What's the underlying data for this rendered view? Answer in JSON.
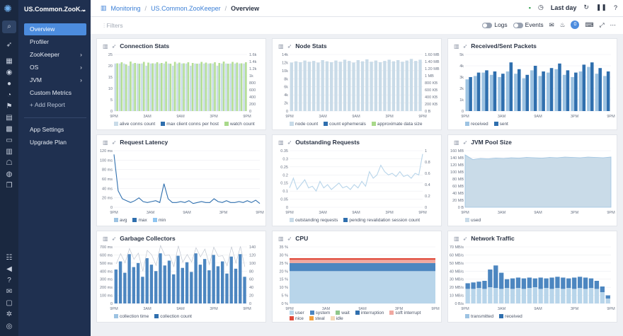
{
  "app": {
    "name": "US.Common.ZooK..."
  },
  "nav": {
    "items": [
      {
        "label": "Overview"
      },
      {
        "label": "Profiler"
      },
      {
        "label": "ZooKeeper"
      },
      {
        "label": "OS"
      },
      {
        "label": "JVM"
      },
      {
        "label": "Custom Metrics"
      },
      {
        "label": "Add Report"
      },
      {
        "label": "App Settings"
      },
      {
        "label": "Upgrade Plan"
      }
    ]
  },
  "breadcrumb": {
    "root": "Monitoring",
    "app": "US.Common.ZooKeeper",
    "page": "Overview"
  },
  "header": {
    "time_range": "Last day"
  },
  "toolbar": {
    "filters": "Filters",
    "logs": "Logs",
    "events": "Events",
    "notif_count": "0"
  },
  "xticks": [
    "9PM",
    "3AM",
    "9AM",
    "3PM",
    "9PM"
  ],
  "panels": [
    {
      "title": "Connection Stats",
      "y_left": [
        "25",
        "20",
        "15",
        "10",
        "5",
        "0"
      ],
      "y_right": [
        "1.6k",
        "1.4k",
        "1.2k",
        "1k",
        "800",
        "600",
        "400",
        "200",
        "0"
      ],
      "legend": [
        {
          "name": "alive conns count",
          "color": "#c9dbe8"
        },
        {
          "name": "max client conns per host",
          "color": "#2f6fae"
        },
        {
          "name": "watch count",
          "color": "#a8d98a"
        }
      ],
      "chart_data": {
        "type": "bar",
        "series": [
          {
            "name": "alive conns count",
            "values": [
              21,
              21,
              21,
              20,
              21,
              21,
              21,
              20,
              21,
              21,
              21,
              21,
              21,
              20,
              21,
              21,
              21,
              20,
              21,
              21,
              21,
              21,
              21,
              20,
              21,
              21,
              21,
              21,
              21,
              21
            ]
          },
          {
            "name": "watch count",
            "values": [
              1350,
              1380,
              1320,
              1400,
              1360,
              1340,
              1390,
              1370,
              1350,
              1380,
              1360,
              1400,
              1340,
              1390,
              1370,
              1350,
              1380,
              1360,
              1340,
              1390,
              1370,
              1350,
              1380,
              1360,
              1400,
              1340,
              1390,
              1370,
              1350,
              1380
            ]
          }
        ]
      }
    },
    {
      "title": "Node Stats",
      "y_left": [
        "14k",
        "12k",
        "10k",
        "8k",
        "6k",
        "4k",
        "2k",
        "0"
      ],
      "y_right": [
        "1.60 MB",
        "1.40 MB",
        "1.20 MB",
        "1 MB",
        "800 KB",
        "600 KB",
        "400 KB",
        "200 KB",
        "0 B"
      ],
      "legend": [
        {
          "name": "node count",
          "color": "#c9dbe8"
        },
        {
          "name": "count ephemerals",
          "color": "#2f6fae"
        },
        {
          "name": "approximate data size",
          "color": "#a8d98a"
        }
      ],
      "chart_data": {
        "type": "bar",
        "series": [
          {
            "name": "node count",
            "values": [
              12000,
              12300,
              12100,
              12500,
              12200,
              12400,
              12000,
              12600,
              12300,
              12100,
              12500,
              12200,
              12700,
              12400,
              12000,
              12600,
              12300,
              12800,
              12200,
              12500,
              12100,
              12400,
              12700,
              12300,
              12600,
              12200,
              12500,
              12900,
              12400,
              12700
            ]
          }
        ]
      }
    },
    {
      "title": "Received/Sent Packets",
      "y_left": [
        "5k",
        "4k",
        "3k",
        "2k",
        "1k",
        "0"
      ],
      "legend": [
        {
          "name": "received",
          "color": "#9dc3e2"
        },
        {
          "name": "sent",
          "color": "#2f6fae"
        }
      ],
      "chart_data": {
        "type": "bar",
        "series": [
          {
            "name": "received",
            "values": [
              2800,
              3100,
              3400,
              3200,
              3000,
              3500,
              3300,
              2900,
              3600,
              3100,
              3400,
              3700,
              3200,
              3000,
              3500,
              3900,
              3300,
              3100
            ]
          },
          {
            "name": "sent",
            "values": [
              3000,
              3400,
              3600,
              3500,
              3300,
              4300,
              3700,
              3200,
              4000,
              3500,
              3800,
              4200,
              3600,
              3400,
              4100,
              4300,
              3800,
              3500
            ]
          }
        ]
      }
    },
    {
      "title": "Request Latency",
      "y_left": [
        "120 ms",
        "100 ms",
        "80 ms",
        "60 ms",
        "40 ms",
        "20 ms",
        "0"
      ],
      "legend": [
        {
          "name": "avg",
          "color": "#9dc3e2"
        },
        {
          "name": "max",
          "color": "#2f6fae"
        },
        {
          "name": "min",
          "color": "#8fc5f0"
        }
      ],
      "chart_data": {
        "type": "line",
        "series": [
          {
            "name": "max",
            "values": [
              112,
              35,
              18,
              14,
              10,
              14,
              20,
              12,
              10,
              12,
              14,
              10,
              50,
              18,
              10,
              10,
              12,
              10,
              14,
              8,
              10,
              12,
              10,
              10,
              18,
              12,
              10,
              14,
              10,
              10,
              12,
              10,
              14,
              10,
              15,
              8
            ]
          }
        ]
      }
    },
    {
      "title": "Outstanding Requests",
      "y_left": [
        "0.35",
        "0.3",
        "0.25",
        "0.2",
        "0.15",
        "0.1",
        "0.05",
        "0"
      ],
      "y_right": [
        "1",
        "0.8",
        "0.6",
        "0.4",
        "0.2",
        "0"
      ],
      "legend": [
        {
          "name": "outstanding requests",
          "color": "#c9dbe8"
        },
        {
          "name": "pending revalidation session count",
          "color": "#2f6fae"
        }
      ],
      "chart_data": {
        "type": "line",
        "series": [
          {
            "name": "outstanding requests",
            "values": [
              0.12,
              0.18,
              0.11,
              0.14,
              0.17,
              0.12,
              0.13,
              0.1,
              0.16,
              0.12,
              0.14,
              0.11,
              0.13,
              0.15,
              0.12,
              0.13,
              0.11,
              0.14,
              0.12,
              0.16,
              0.13,
              0.22,
              0.18,
              0.2,
              0.26,
              0.22,
              0.2,
              0.21,
              0.19,
              0.22,
              0.19,
              0.2,
              0.18,
              0.21,
              0.2,
              0.33
            ]
          }
        ]
      }
    },
    {
      "title": "JVM Pool Size",
      "y_left": [
        "160 MB",
        "140 MB",
        "120 MB",
        "100 MB",
        "80 MB",
        "60 MB",
        "40 MB",
        "20 MB",
        "0 B"
      ],
      "legend": [
        {
          "name": "used",
          "color": "#c9dbe8"
        }
      ],
      "chart_data": {
        "type": "area",
        "series": [
          {
            "name": "used",
            "values": [
              148,
              135,
              138,
              137,
              139,
              138,
              140,
              139,
              141,
              140,
              139,
              141,
              140,
              142,
              141,
              140,
              142,
              141,
              140,
              142
            ]
          }
        ]
      }
    },
    {
      "title": "Garbage Collectors",
      "y_left": [
        "700 ms",
        "600 ms",
        "500 ms",
        "400 ms",
        "300 ms",
        "200 ms",
        "100 ms",
        "0"
      ],
      "y_right": [
        "140",
        "120",
        "100",
        "80",
        "60",
        "40",
        "20",
        "0"
      ],
      "legend": [
        {
          "name": "collection time",
          "color": "#9dc3e2"
        },
        {
          "name": "collection count",
          "color": "#2f6fae"
        }
      ],
      "chart_data": {
        "type": "bar",
        "series": [
          {
            "name": "collection time",
            "values": [
              420,
              520,
              380,
              610,
              450,
              500,
              330,
              560,
              480,
              400,
              620,
              470,
              530,
              360,
              590,
              440,
              510,
              390,
              620,
              480,
              550,
              410,
              600,
              460,
              520,
              370,
              580,
              430,
              610,
              330
            ]
          }
        ]
      }
    },
    {
      "title": "CPU",
      "y_left": [
        "35 %",
        "30 %",
        "25 %",
        "20 %",
        "15 %",
        "10 %",
        "5 %",
        "0 %"
      ],
      "legend": [
        {
          "name": "user",
          "color": "#b8d5ea"
        },
        {
          "name": "system",
          "color": "#4c86c0"
        },
        {
          "name": "wait",
          "color": "#8fc78a"
        },
        {
          "name": "interruption",
          "color": "#2f6fae"
        },
        {
          "name": "soft interrupt",
          "color": "#f0a8a0"
        },
        {
          "name": "nice",
          "color": "#e04a3a"
        },
        {
          "name": "steal",
          "color": "#f4a03a"
        },
        {
          "name": "idle",
          "color": "#f4d8b8"
        }
      ],
      "chart_data": {
        "type": "area",
        "series": [
          {
            "name": "user",
            "values": [
              20,
              20,
              20,
              20,
              20,
              20,
              20,
              20
            ]
          },
          {
            "name": "system",
            "values": [
              5,
              5,
              5,
              5,
              5,
              5,
              5,
              5
            ]
          },
          {
            "name": "soft interrupt",
            "values": [
              2,
              2,
              2,
              2,
              2,
              2,
              2,
              2
            ]
          },
          {
            "name": "nice",
            "values": [
              1,
              1,
              1,
              1,
              1,
              1,
              1,
              1
            ]
          }
        ]
      }
    },
    {
      "title": "Network Traffic",
      "y_left": [
        "70 MB/s",
        "60 MB/s",
        "50 MB/s",
        "40 MB/s",
        "30 MB/s",
        "20 MB/s",
        "10 MB/s",
        "0 B/s"
      ],
      "legend": [
        {
          "name": "transmitted",
          "color": "#9dc3e2"
        },
        {
          "name": "received",
          "color": "#2f6fae"
        }
      ],
      "chart_data": {
        "type": "bar",
        "series": [
          {
            "name": "transmitted",
            "values": [
              18,
              18,
              19,
              18,
              20,
              19,
              18,
              19,
              18,
              19,
              18,
              19,
              20,
              18,
              19,
              18,
              19,
              18,
              19,
              18,
              19,
              18,
              19,
              18,
              14,
              6
            ]
          },
          {
            "name": "received",
            "values": [
              25,
              26,
              27,
              28,
              42,
              47,
              38,
              30,
              31,
              32,
              31,
              32,
              31,
              32,
              31,
              32,
              33,
              32,
              31,
              32,
              33,
              32,
              31,
              28,
              21,
              10
            ]
          }
        ]
      }
    }
  ]
}
